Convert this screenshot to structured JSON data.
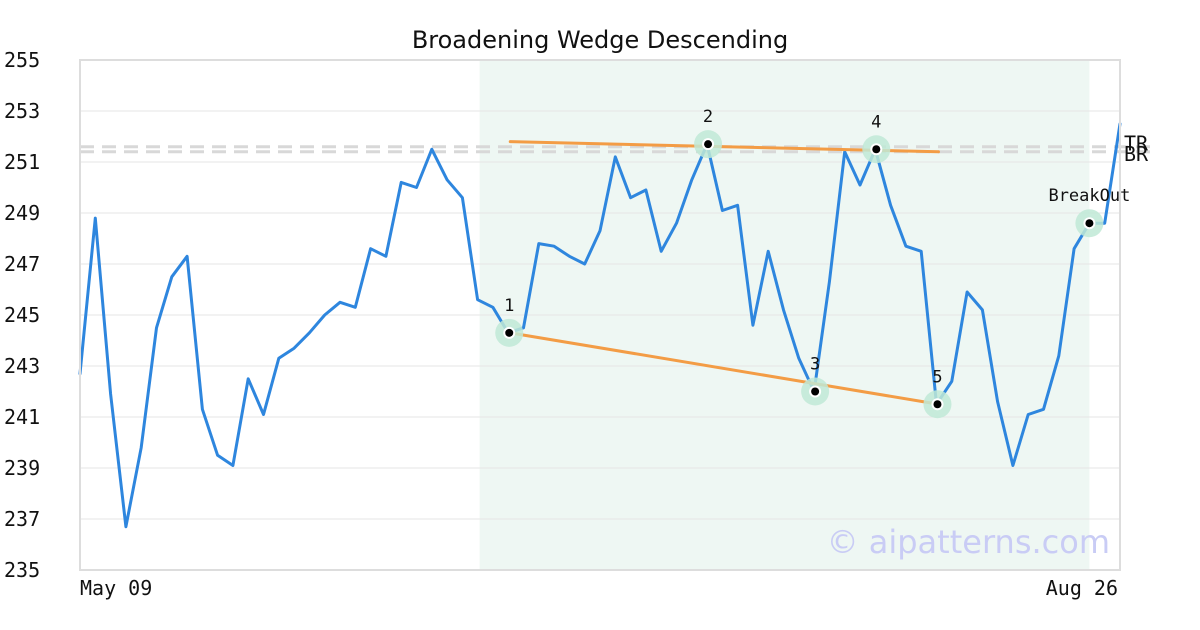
{
  "chart_data": {
    "type": "line",
    "title": "Broadening Wedge Descending",
    "xlabel": "",
    "ylabel": "",
    "ylim": [
      235,
      255
    ],
    "yticks": [
      "235",
      "237",
      "239",
      "241",
      "243",
      "245",
      "247",
      "249",
      "251",
      "253",
      "255"
    ],
    "x_start_label": "May 09",
    "x_end_label": "Aug 26",
    "grid": true,
    "series": [
      {
        "values": [
          242.7,
          248.8,
          241.9,
          236.7,
          239.8,
          244.5,
          246.5,
          247.3,
          241.3,
          239.5,
          239.1,
          242.5,
          241.1,
          243.3,
          243.7,
          244.3,
          245.0,
          245.5,
          245.3,
          247.6,
          247.3,
          250.2,
          250.0,
          251.5,
          250.3,
          249.6,
          245.6,
          245.3,
          244.3,
          244.5,
          247.8,
          247.7,
          247.3,
          247.0,
          248.3,
          251.2,
          249.6,
          249.9,
          247.5,
          248.6,
          250.3,
          251.7,
          249.1,
          249.3,
          244.6,
          247.5,
          245.2,
          243.3,
          242.0,
          246.3,
          251.4,
          250.1,
          251.5,
          249.3,
          247.7,
          247.5,
          241.5,
          242.4,
          245.9,
          245.2,
          241.6,
          239.1,
          241.1,
          241.3,
          243.4,
          247.6,
          248.6,
          248.6,
          252.5
        ]
      }
    ],
    "shaded_range": {
      "from_index": 26,
      "to_index": 66
    },
    "trendlines": [
      {
        "name": "upper",
        "from": {
          "x_index": 28,
          "value": 251.8
        },
        "to": {
          "x_index": 56,
          "value": 251.4
        }
      },
      {
        "name": "lower",
        "from": {
          "x_index": 28,
          "value": 244.3
        },
        "to": {
          "x_index": 56,
          "value": 241.5
        }
      }
    ],
    "annotations": [
      {
        "label": "1",
        "x_index": 28,
        "value": 244.3
      },
      {
        "label": "2",
        "x_index": 41,
        "value": 251.7
      },
      {
        "label": "3",
        "x_index": 48,
        "value": 242.0
      },
      {
        "label": "4",
        "x_index": 52,
        "value": 251.5
      },
      {
        "label": "5",
        "x_index": 56,
        "value": 241.5
      },
      {
        "label": "BreakOut",
        "x_index": 66,
        "value": 248.6
      }
    ],
    "levels": [
      {
        "label": "TR",
        "value": 251.6
      },
      {
        "label": "BR",
        "value": 251.4
      }
    ],
    "colors": {
      "line": "#2e86de",
      "trend": "#f39c45",
      "shade": "#eef7f3",
      "marker_halo": "#bfe9d6",
      "grid": "#e6e6e6",
      "level": "#d8d8d8",
      "frame": "#dddddd"
    }
  },
  "watermark": "© aipatterns.com"
}
